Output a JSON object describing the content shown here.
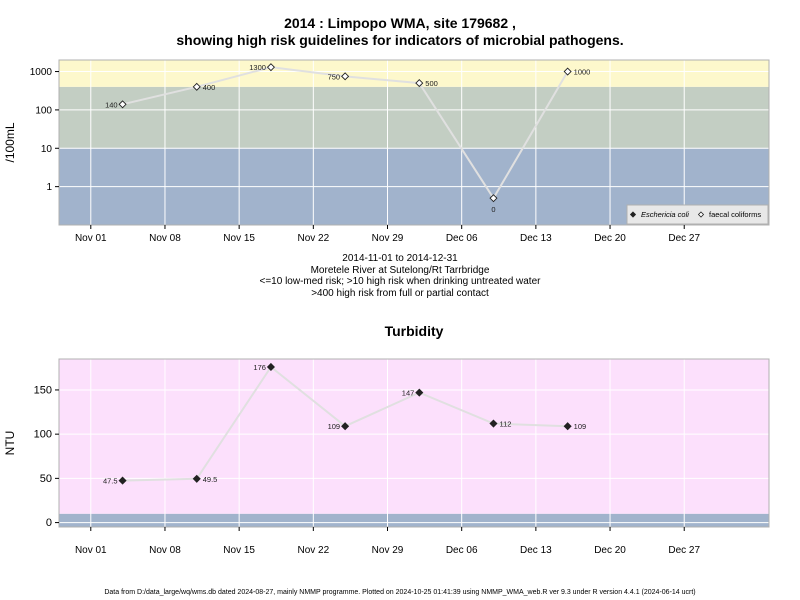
{
  "header": {
    "title_line1": "2014 : Limpopo WMA, site 179682 ,",
    "title_line2": "showing high risk guidelines for indicators of microbial pathogens."
  },
  "info": {
    "line1": "2014-11-01 to 2014-12-31",
    "line2": "Moretele River at Sutelong/Rt Tarrbridge",
    "line3": "<=10 low-med risk; >10 high risk when drinking untreated water",
    "line4": ">400 high risk from full or partial contact"
  },
  "footer": {
    "text": "Data from D:/data_large/wq/wms.db dated 2024-08-27, mainly NMMP programme. Plotted on 2024-10-25 01:41:39 using NMMP_WMA_web.R ver 9.3 under R version 4.4.1 (2024-06-14 ucrt)"
  },
  "colors": {
    "band_blue": "#a1b3cc",
    "band_green": "#c3cec3",
    "band_yellow": "#fdf8cc",
    "band_pink": "#fce0fc",
    "line": "#e0e0e0",
    "grid": "#ffffff"
  },
  "chart_data": [
    {
      "type": "line",
      "title": "",
      "ylabel": "/100mL",
      "y_scale": "log",
      "ylim": [
        0.1,
        2000
      ],
      "y_ticks": [
        1,
        10,
        100,
        1000
      ],
      "y_tick_labels": [
        "1",
        "10",
        "100",
        "1000"
      ],
      "xlim": [
        "2014-10-29",
        "2015-01-04"
      ],
      "x_ticks": [
        "2014-11-01",
        "2014-11-08",
        "2014-11-15",
        "2014-11-22",
        "2014-11-29",
        "2014-12-06",
        "2014-12-13",
        "2014-12-20",
        "2014-12-27"
      ],
      "x_tick_labels": [
        "Nov 01",
        "Nov 08",
        "Nov 15",
        "Nov 22",
        "Nov 29",
        "Dec 06",
        "Dec 13",
        "Dec 20",
        "Dec 27"
      ],
      "bands": [
        {
          "from": 0.1,
          "to": 10,
          "color": "#a1b3cc"
        },
        {
          "from": 10,
          "to": 400,
          "color": "#c3cec3"
        },
        {
          "from": 400,
          "to": 2000,
          "color": "#fdf8cc"
        }
      ],
      "legend": {
        "position": "bottom-right",
        "entries": [
          "Eschericia coli",
          "faecal coliforms"
        ]
      },
      "series": [
        {
          "name": "faecal coliforms",
          "marker": "open-diamond",
          "x": [
            "2014-11-04",
            "2014-11-11",
            "2014-11-18",
            "2014-11-25",
            "2014-12-02",
            "2014-12-09",
            "2014-12-16"
          ],
          "values": [
            140,
            400,
            1300,
            750,
            500,
            0.5,
            1000
          ],
          "labels": [
            "140",
            "400",
            "1300",
            "750",
            "500",
            "0",
            "1000"
          ],
          "label_side": [
            "left",
            "right",
            "left",
            "left",
            "right",
            "below",
            "right"
          ]
        }
      ]
    },
    {
      "type": "line",
      "title": "Turbidity",
      "ylabel": "NTU",
      "ylim": [
        -5,
        185
      ],
      "y_ticks": [
        0,
        50,
        100,
        150
      ],
      "y_tick_labels": [
        "0",
        "50",
        "100",
        "150"
      ],
      "xlim": [
        "2014-10-29",
        "2015-01-04"
      ],
      "x_ticks": [
        "2014-11-01",
        "2014-11-08",
        "2014-11-15",
        "2014-11-22",
        "2014-11-29",
        "2014-12-06",
        "2014-12-13",
        "2014-12-20",
        "2014-12-27"
      ],
      "x_tick_labels": [
        "Nov 01",
        "Nov 08",
        "Nov 15",
        "Nov 22",
        "Nov 29",
        "Dec 06",
        "Dec 13",
        "Dec 20",
        "Dec 27"
      ],
      "bands": [
        {
          "from": -5,
          "to": 10,
          "color": "#a1b3cc"
        },
        {
          "from": 10,
          "to": 185,
          "color": "#fce0fc"
        }
      ],
      "series": [
        {
          "marker": "filled-diamond",
          "x": [
            "2014-11-04",
            "2014-11-11",
            "2014-11-18",
            "2014-11-25",
            "2014-12-02",
            "2014-12-09",
            "2014-12-16"
          ],
          "values": [
            47.5,
            49.5,
            176,
            109,
            147,
            112,
            109
          ],
          "labels": [
            "47.5",
            "49.5",
            "176",
            "109",
            "147",
            "112",
            "109"
          ],
          "label_side": [
            "left",
            "right",
            "left",
            "left",
            "left",
            "right",
            "right"
          ]
        }
      ]
    }
  ]
}
